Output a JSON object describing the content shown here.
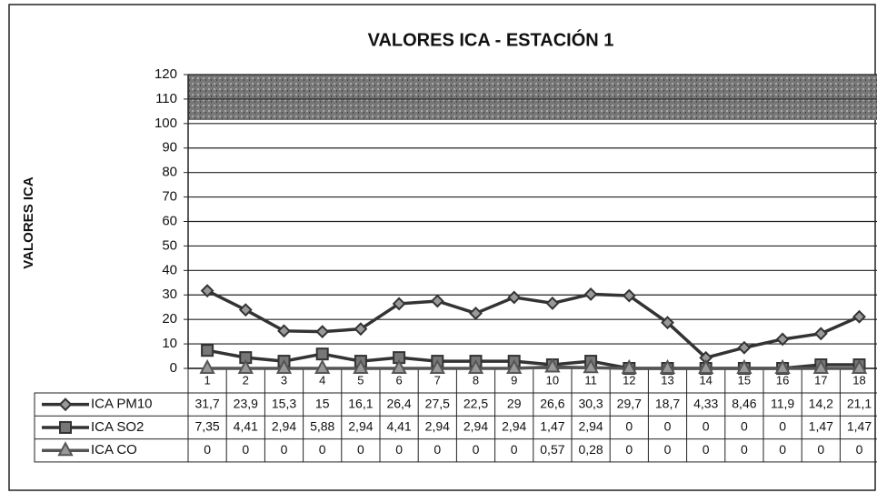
{
  "chart_data": {
    "type": "line",
    "title": "VALORES ICA - ESTACIÓN 1",
    "y_label": "VALORES ICA",
    "categories": [
      "1",
      "2",
      "3",
      "4",
      "5",
      "6",
      "7",
      "8",
      "9",
      "10",
      "11",
      "12",
      "13",
      "14",
      "15",
      "16",
      "17",
      "18"
    ],
    "series": [
      {
        "name": "ICA PM10",
        "color": "#333333",
        "marker": "diamond",
        "values": [
          31.7,
          23.9,
          15.3,
          15,
          16.1,
          26.4,
          27.5,
          22.5,
          29,
          26.6,
          30.3,
          29.7,
          18.7,
          4.33,
          8.46,
          11.9,
          14.2,
          21.1
        ],
        "value_labels": [
          "31,7",
          "23,9",
          "15,3",
          "15",
          "16,1",
          "26,4",
          "27,5",
          "22,5",
          "29",
          "26,6",
          "30,3",
          "29,7",
          "18,7",
          "4,33",
          "8,46",
          "11,9",
          "14,2",
          "21,1"
        ]
      },
      {
        "name": "ICA SO2",
        "color": "#333333",
        "marker": "square",
        "values": [
          7.35,
          4.41,
          2.94,
          5.88,
          2.94,
          4.41,
          2.94,
          2.94,
          2.94,
          1.47,
          2.94,
          0,
          0,
          0,
          0,
          0,
          1.47,
          1.47
        ],
        "value_labels": [
          "7,35",
          "4,41",
          "2,94",
          "5,88",
          "2,94",
          "4,41",
          "2,94",
          "2,94",
          "2,94",
          "1,47",
          "2,94",
          "0",
          "0",
          "0",
          "0",
          "0",
          "1,47",
          "1,47"
        ]
      },
      {
        "name": "ICA CO",
        "color": "#555555",
        "marker": "triangle",
        "values": [
          0,
          0,
          0,
          0,
          0,
          0,
          0,
          0,
          0,
          0.57,
          0.28,
          0,
          0,
          0,
          0,
          0,
          0,
          0
        ],
        "value_labels": [
          "0",
          "0",
          "0",
          "0",
          "0",
          "0",
          "0",
          "0",
          "0",
          "0,57",
          "0,28",
          "0",
          "0",
          "0",
          "0",
          "0",
          "0",
          "0"
        ]
      }
    ],
    "ylim": [
      0,
      120
    ],
    "yticks": [
      0,
      10,
      20,
      30,
      40,
      50,
      60,
      70,
      80,
      90,
      100,
      110,
      120
    ],
    "grid": true
  }
}
